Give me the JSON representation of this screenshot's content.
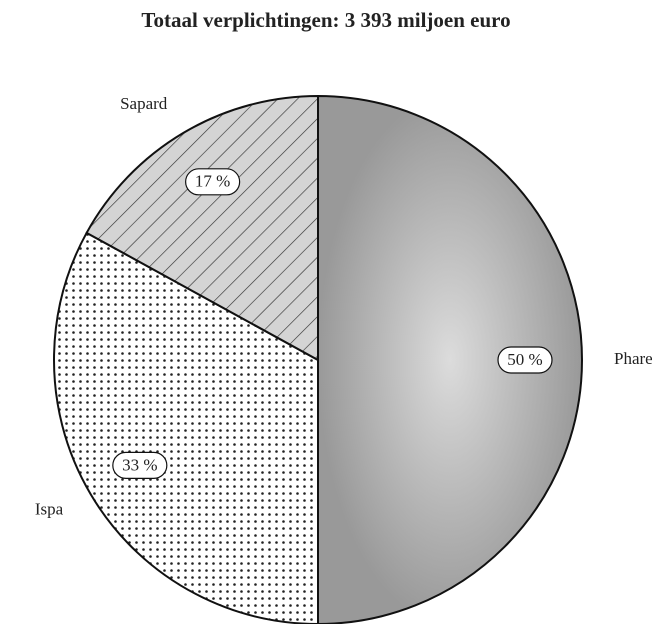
{
  "chart_data": {
    "type": "pie",
    "title": "Totaal verplichtingen: 3 393 miljoen euro",
    "categories": [
      "Phare",
      "Ispa",
      "Sapard"
    ],
    "values": [
      50,
      33,
      17
    ],
    "value_labels": [
      "50 %",
      "33 %",
      "17 %"
    ],
    "colors": [
      "#a9a9a9",
      "#ffffff",
      "#d4d4d4"
    ]
  }
}
